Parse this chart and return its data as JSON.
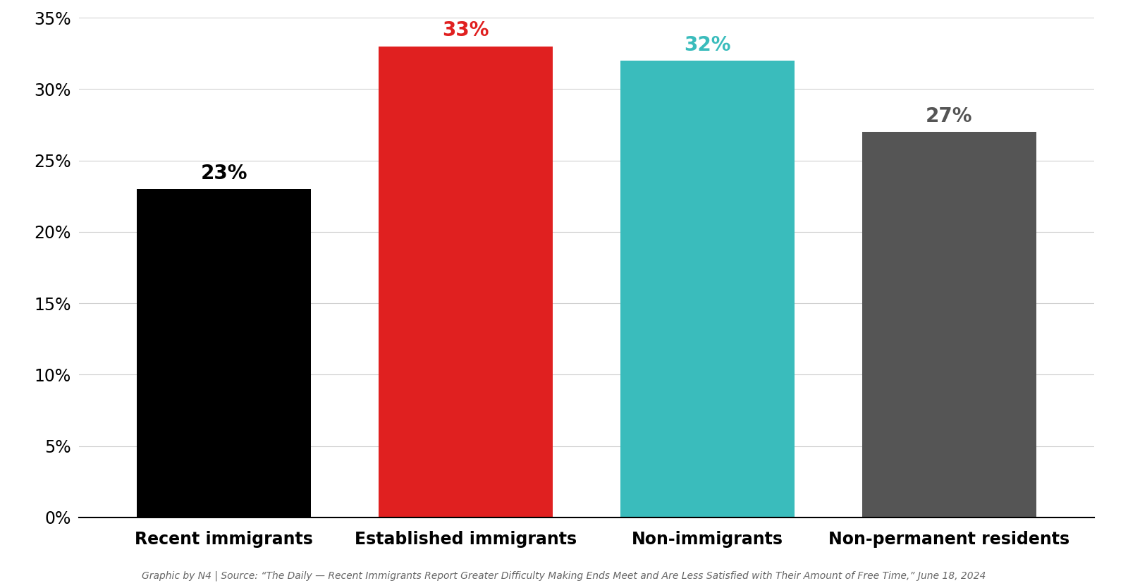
{
  "categories": [
    "Recent immigrants",
    "Established immigrants",
    "Non-immigrants",
    "Non-permanent residents"
  ],
  "values": [
    23,
    33,
    32,
    27
  ],
  "bar_colors": [
    "#000000",
    "#e02020",
    "#3abcbc",
    "#555555"
  ],
  "label_colors": [
    "#000000",
    "#e02020",
    "#3abcbc",
    "#555555"
  ],
  "ylim": [
    0,
    35
  ],
  "yticks": [
    0,
    5,
    10,
    15,
    20,
    25,
    30,
    35
  ],
  "background_color": "#ffffff",
  "footer": "Graphic by N4 | Source: “The Daily — Recent Immigrants Report Greater Difficulty Making Ends Meet and Are Less Satisfied with Their Amount of Free Time,” June 18, 2024",
  "label_fontsize": 20,
  "tick_fontsize": 17,
  "category_fontsize": 17,
  "footer_fontsize": 10,
  "bar_width": 0.72
}
